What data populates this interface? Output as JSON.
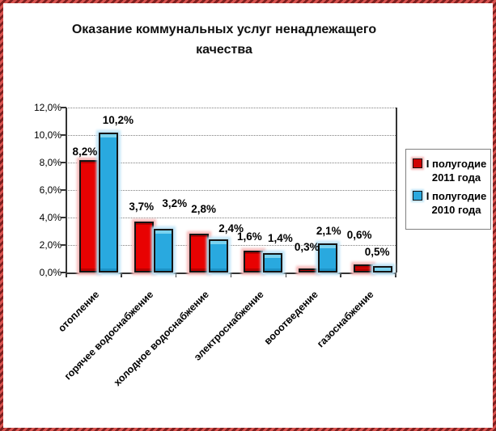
{
  "chart_data": {
    "type": "bar",
    "title": "Оказание коммунальных услуг ненадлежащего качества",
    "categories": [
      "отопление",
      "горячее водоснабжение",
      "холодное водоснабжение",
      "электроснабжение",
      "вооотведение",
      "газоснабжение"
    ],
    "series": [
      {
        "name": "I полугодие 2011 года",
        "color": "#e80202",
        "glow_color": "#f6b9b9",
        "values": [
          8.2,
          3.7,
          2.8,
          1.6,
          0.3,
          0.6
        ],
        "labels": [
          "8,2%",
          "3,7%",
          "2,8%",
          "1,6%",
          "0,3%",
          "0,6%"
        ],
        "label_dx": [
          -5,
          -3,
          6,
          -5,
          -2,
          -5
        ],
        "label_gap": [
          3,
          11,
          23,
          10,
          19,
          29
        ]
      },
      {
        "name": "I полугодие 2010 года",
        "color": "#29a9df",
        "glow_color": "#bfe4f6",
        "values": [
          10.2,
          3.2,
          2.4,
          1.4,
          2.1,
          0.5
        ],
        "labels": [
          "10,2%",
          "3,2%",
          "2,4%",
          "1,4%",
          "2,1%",
          "0,5%"
        ],
        "label_dx": [
          12,
          14,
          16,
          9,
          1,
          -7
        ],
        "label_gap": [
          8,
          24,
          6,
          11,
          8,
          10
        ]
      }
    ],
    "ylim": [
      0,
      12
    ],
    "ytick_step": 2,
    "ytick_labels": [
      "0,0%",
      "2,0%",
      "4,0%",
      "6,0%",
      "8,0%",
      "10,0%",
      "12,0%"
    ],
    "grid": true,
    "legend_position": "right"
  },
  "legend": {
    "items": [
      {
        "lines": [
          "I полугодие",
          "2011 года"
        ],
        "series_index": 0
      },
      {
        "lines": [
          "I полугодие",
          "2010 года"
        ],
        "series_index": 1
      }
    ]
  }
}
